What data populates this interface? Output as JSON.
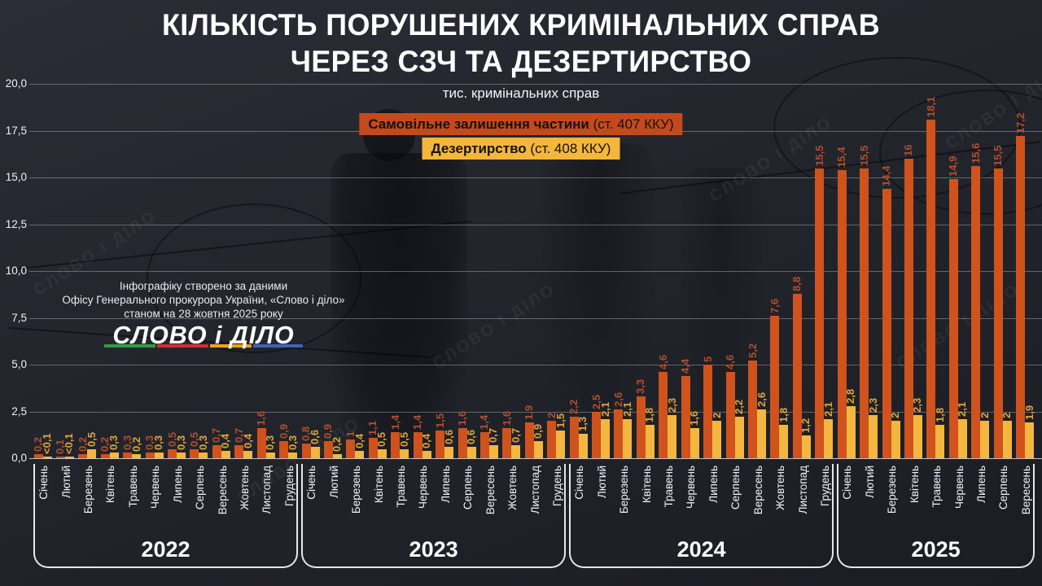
{
  "header": {
    "title_line1": "КІЛЬКІСТЬ ПОРУШЕНИХ КРИМІНАЛЬНИХ СПРАВ",
    "title_line2": "ЧЕРЕЗ СЗЧ ТА ДЕЗЕРТИРСТВО",
    "subtitle": "тис. кримінальних справ"
  },
  "legend": {
    "szch_bold": "Самовільне залишення частини",
    "szch_rest": " (ст. 407 ККУ)",
    "szch_bg": "#c44a1d",
    "des_bold": "Дезертирство",
    "des_rest": " (ст. 408 ККУ)",
    "des_bg": "#f4b73c"
  },
  "source": {
    "line1": "Інфографіку створено за даними",
    "line2": "Офісу Генерального прокурора України, «Слово і діло»",
    "line3": "станом на 28 жовтня 2025 року",
    "logo_text": "СЛОВО і ДІЛО",
    "stripe_colors": [
      "#2f9e41",
      "#d32f2f",
      "#efa11b",
      "#3f63b5"
    ]
  },
  "watermark": "СЛОВО І ДІЛО",
  "chart_data": {
    "type": "bar",
    "title": "Кількість порушених кримінальних справ через СЗЧ та дезертирство",
    "ylabel": "тис. кримінальних справ",
    "ylim": [
      0,
      20
    ],
    "ytick_labels": [
      "0,0",
      "2,5",
      "5,0",
      "7,5",
      "10,0",
      "12,5",
      "15,0",
      "17,5",
      "20,0"
    ],
    "grid": true,
    "series_meta": [
      {
        "name": "Самовільне залишення частини (ст. 407 ККУ)",
        "color": "#d0521c",
        "label_color": "#b04e2c"
      },
      {
        "name": "Дезертирство (ст. 408 ККУ)",
        "color": "#f3b63e",
        "label_color": "#dda43c"
      }
    ],
    "groups": [
      {
        "year": "2022",
        "months": [
          "Січень",
          "Лютий",
          "Березень",
          "Квітень",
          "Травень",
          "Червень",
          "Липень",
          "Серпень",
          "Вересень",
          "Жовтень",
          "Листопад",
          "Грудень"
        ],
        "szch_labels": [
          "0,2",
          "0,1",
          "0,2",
          "0,2",
          "0,3",
          "0,3",
          "0,5",
          "0,5",
          "0,7",
          "0,7",
          "1,6",
          "0,9"
        ],
        "szch_values": [
          0.2,
          0.1,
          0.2,
          0.2,
          0.3,
          0.3,
          0.5,
          0.5,
          0.7,
          0.7,
          1.6,
          0.9
        ],
        "desertion_labels": [
          "<0,1",
          "<0,1",
          "0,5",
          "0,3",
          "0,2",
          "0,3",
          "0,3",
          "0,3",
          "0,4",
          "0,4",
          "0,3",
          "0,3"
        ],
        "desertion_values": [
          0.05,
          0.05,
          0.5,
          0.3,
          0.2,
          0.3,
          0.3,
          0.3,
          0.4,
          0.4,
          0.3,
          0.3
        ]
      },
      {
        "year": "2023",
        "months": [
          "Січень",
          "Лютий",
          "Березень",
          "Квітень",
          "Травень",
          "Червень",
          "Липень",
          "Серпень",
          "Вересень",
          "Жовтень",
          "Листопад",
          "Грудень"
        ],
        "szch_labels": [
          "0,8",
          "0,9",
          "1",
          "1,1",
          "1,4",
          "1,4",
          "1,5",
          "1,6",
          "1,4",
          "1,6",
          "1,9",
          "2"
        ],
        "szch_values": [
          0.8,
          0.9,
          1,
          1.1,
          1.4,
          1.4,
          1.5,
          1.6,
          1.4,
          1.6,
          1.9,
          2
        ],
        "desertion_labels": [
          "0,6",
          "0,2",
          "0,4",
          "0,5",
          "0,5",
          "0,4",
          "0,6",
          "0,6",
          "0,7",
          "0,7",
          "0,9",
          "1,5"
        ],
        "desertion_values": [
          0.6,
          0.2,
          0.4,
          0.5,
          0.5,
          0.4,
          0.6,
          0.6,
          0.7,
          0.7,
          0.9,
          1.5
        ]
      },
      {
        "year": "2024",
        "months": [
          "Січень",
          "Лютий",
          "Березень",
          "Квітень",
          "Травень",
          "Червень",
          "Липень",
          "Серпень",
          "Вересень",
          "Жовтень",
          "Листопад",
          "Грудень"
        ],
        "szch_labels": [
          "2,2",
          "2,5",
          "2,6",
          "3,3",
          "4,6",
          "4,4",
          "5",
          "4,6",
          "5,2",
          "7,6",
          "8,8",
          "15,5"
        ],
        "szch_values": [
          2.2,
          2.5,
          2.6,
          3.3,
          4.6,
          4.4,
          5,
          4.6,
          5.2,
          7.6,
          8.8,
          15.5
        ],
        "desertion_labels": [
          "1,3",
          "2,1",
          "2,1",
          "1,8",
          "2,3",
          "1,6",
          "2",
          "2,2",
          "2,6",
          "1,8",
          "1,2",
          "2,1"
        ],
        "desertion_values": [
          1.3,
          2.1,
          2.1,
          1.8,
          2.3,
          1.6,
          2,
          2.2,
          2.6,
          1.8,
          1.2,
          2.1
        ]
      },
      {
        "year": "2025",
        "months": [
          "Січень",
          "Лютий",
          "Березень",
          "Квітень",
          "Травень",
          "Червень",
          "Липень",
          "Серпень",
          "Вересень"
        ],
        "szch_labels": [
          "15,4",
          "15,5",
          "14,4",
          "16",
          "18,1",
          "14,9",
          "15,6",
          "15,5",
          "17,2"
        ],
        "szch_values": [
          15.4,
          15.5,
          14.4,
          16,
          18.1,
          14.9,
          15.6,
          15.5,
          17.2
        ],
        "desertion_labels": [
          "2,8",
          "2,3",
          "2",
          "2,3",
          "1,8",
          "2,1",
          "2",
          "2",
          "1,9"
        ],
        "desertion_values": [
          2.8,
          2.3,
          2,
          2.3,
          1.8,
          2.1,
          2,
          2,
          1.9
        ]
      }
    ]
  }
}
